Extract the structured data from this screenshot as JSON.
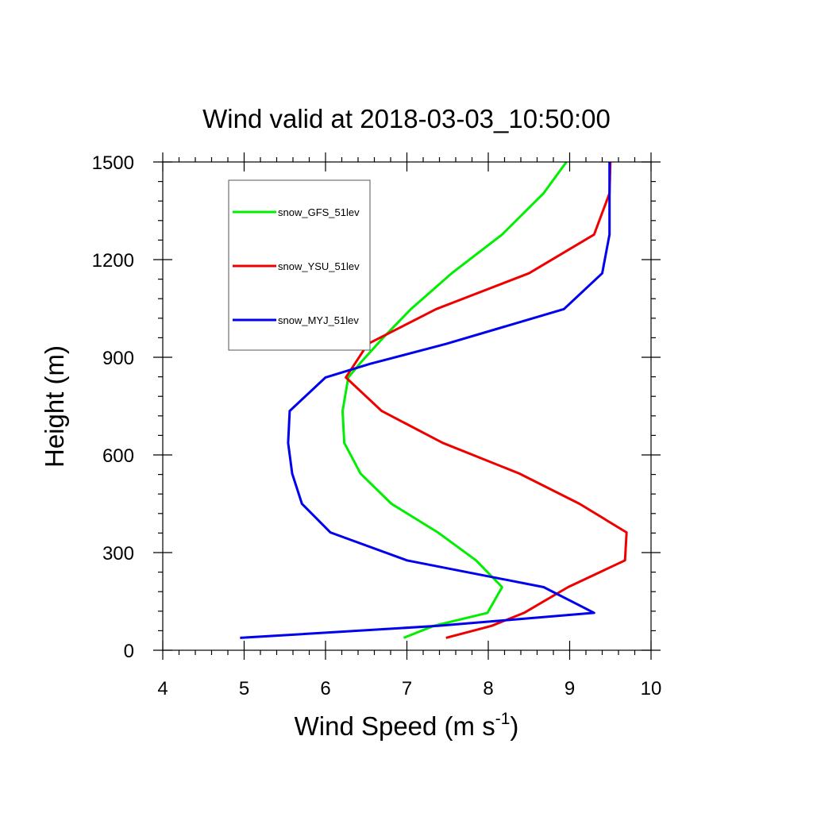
{
  "chart_data": {
    "type": "line",
    "title": "Wind valid at 2018-03-03_10:50:00",
    "xlabel": "Wind Speed (m s",
    "xlabel_sup": "-1",
    "xlabel_close": ")",
    "ylabel": "Height (m)",
    "xlim": [
      4,
      10
    ],
    "ylim": [
      0,
      1500
    ],
    "xticks": [
      4,
      5,
      6,
      7,
      8,
      9,
      10
    ],
    "yticks": [
      0,
      300,
      600,
      900,
      1200,
      1500
    ],
    "legend_position": "top-left (inside)",
    "series": [
      {
        "name": "snow_GFS_51lev",
        "color": "#00ee00",
        "x": [
          6.96,
          7.33,
          7.99,
          8.17,
          7.85,
          7.38,
          6.81,
          6.43,
          6.23,
          6.21,
          6.28,
          6.44,
          6.7,
          7.05,
          7.55,
          8.17,
          8.68,
          8.96
        ],
        "y": [
          38,
          75,
          115,
          194,
          276,
          362,
          450,
          543,
          637,
          735,
          838,
          886,
          958,
          1048,
          1158,
          1277,
          1404,
          1500
        ]
      },
      {
        "name": "snow_YSU_51lev",
        "color": "#ee0000",
        "x": [
          7.48,
          8.04,
          8.44,
          8.98,
          9.68,
          9.7,
          9.12,
          8.38,
          7.44,
          6.69,
          6.25,
          6.52,
          7.36,
          8.5,
          9.3,
          9.49,
          9.5
        ],
        "y": [
          38,
          75,
          115,
          194,
          276,
          362,
          450,
          543,
          637,
          735,
          838,
          941,
          1048,
          1158,
          1277,
          1404,
          1500
        ]
      },
      {
        "name": "snow_MYJ_51lev",
        "color": "#0000ee",
        "x": [
          4.95,
          7.38,
          9.3,
          8.68,
          7.0,
          6.06,
          5.71,
          5.59,
          5.54,
          5.56,
          6.0,
          6.55,
          7.48,
          8.93,
          9.4,
          9.49,
          9.49,
          9.49
        ],
        "y": [
          38,
          75,
          115,
          194,
          276,
          362,
          450,
          543,
          637,
          735,
          838,
          880,
          941,
          1048,
          1158,
          1277,
          1404,
          1500
        ]
      }
    ]
  }
}
